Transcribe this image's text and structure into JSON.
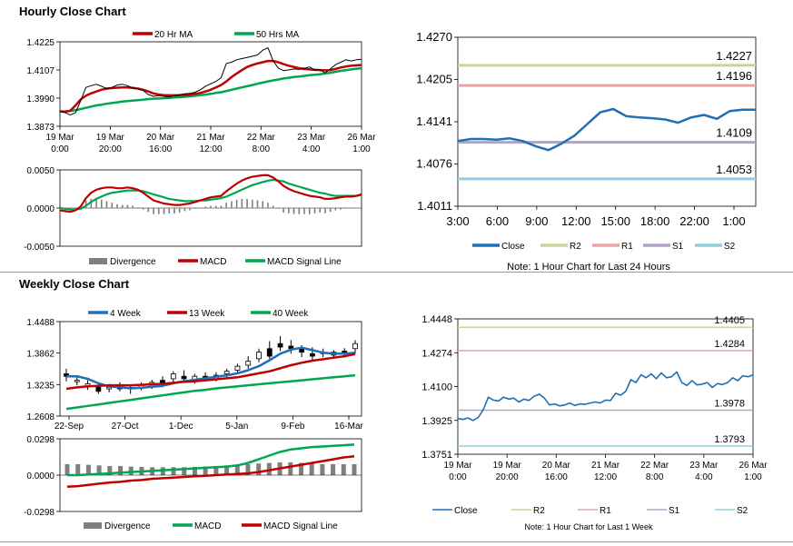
{
  "titles": {
    "hourly": "Hourly Close Chart",
    "weekly": "Weekly Close Chart"
  },
  "colors": {
    "red": "#c00000",
    "green": "#00a651",
    "blue": "#1f6fb5",
    "bar": "#7f7f7f",
    "r2": "#c3d69b",
    "r1": "#e6a6a6",
    "s1": "#b3a2c7",
    "s2": "#93cddd",
    "black": "#000000"
  },
  "chart_data": [
    {
      "id": "hourly_price",
      "type": "line",
      "legend": [
        "20 Hr MA",
        "50 Hrs MA"
      ],
      "x_tick_labels": [
        [
          "19 Mar",
          "0:00"
        ],
        [
          "19 Mar",
          "20:00"
        ],
        [
          "20 Mar",
          "16:00"
        ],
        [
          "21 Mar",
          "12:00"
        ],
        [
          "22 Mar",
          "8:00"
        ],
        [
          "23 Mar",
          "4:00"
        ],
        [
          "26 Mar",
          "1:00"
        ]
      ],
      "y_tick_labels": [
        "1.4225",
        "1.4107",
        "1.3990",
        "1.3873"
      ],
      "ylim": [
        1.3873,
        1.4225
      ],
      "series": [
        {
          "name": "Close",
          "values": [
            1.3935,
            1.393,
            1.392,
            1.393,
            1.398,
            1.4035,
            1.4042,
            1.4048,
            1.404,
            1.403,
            1.4035,
            1.4045,
            1.4048,
            1.4042,
            1.4032,
            1.4028,
            1.4022,
            1.4005,
            1.3998,
            1.4,
            1.3998,
            1.3995,
            1.4,
            1.4005,
            1.4008,
            1.401,
            1.4015,
            1.4025,
            1.404,
            1.405,
            1.406,
            1.4075,
            1.4135,
            1.414,
            1.415,
            1.4155,
            1.416,
            1.4165,
            1.417,
            1.419,
            1.42,
            1.4145,
            1.4115,
            1.4105,
            1.4108,
            1.4112,
            1.411,
            1.4115,
            1.412,
            1.4108,
            1.411,
            1.4095,
            1.4112,
            1.413,
            1.414,
            1.415,
            1.4145,
            1.415,
            1.4152
          ]
        },
        {
          "name": "20 Hr MA",
          "values": [
            1.3935,
            1.3933,
            1.3938,
            1.396,
            1.3985,
            1.4,
            1.401,
            1.4018,
            1.4025,
            1.403,
            1.4032,
            1.4034,
            1.4035,
            1.4035,
            1.4033,
            1.403,
            1.4025,
            1.4018,
            1.401,
            1.4005,
            1.4003,
            1.4002,
            1.4002,
            1.4002,
            1.4003,
            1.4005,
            1.4008,
            1.4012,
            1.4018,
            1.4025,
            1.4035,
            1.4045,
            1.406,
            1.4078,
            1.4093,
            1.4107,
            1.412,
            1.4128,
            1.4135,
            1.414,
            1.4145,
            1.4145,
            1.414,
            1.4132,
            1.4125,
            1.412,
            1.4115,
            1.4112,
            1.411,
            1.4108,
            1.4107,
            1.4106,
            1.4107,
            1.4112,
            1.4118,
            1.4122,
            1.4125,
            1.4127,
            1.4128
          ]
        },
        {
          "name": "50 Hrs MA",
          "values": [
            1.3935,
            1.3935,
            1.3937,
            1.394,
            1.3945,
            1.395,
            1.3955,
            1.396,
            1.3963,
            1.3967,
            1.397,
            1.3973,
            1.3976,
            1.3978,
            1.398,
            1.3982,
            1.3984,
            1.3986,
            1.3988,
            1.3989,
            1.399,
            1.3991,
            1.3993,
            1.3994,
            1.3996,
            1.3998,
            1.4,
            1.4003,
            1.4005,
            1.4008,
            1.4012,
            1.4015,
            1.402,
            1.4025,
            1.403,
            1.4035,
            1.404,
            1.4045,
            1.405,
            1.4055,
            1.406,
            1.4064,
            1.4068,
            1.4072,
            1.4075,
            1.4078,
            1.408,
            1.4083,
            1.4086,
            1.4088,
            1.409,
            1.4093,
            1.4096,
            1.41,
            1.4104,
            1.4107,
            1.411,
            1.4113,
            1.4115
          ]
        }
      ]
    },
    {
      "id": "hourly_macd",
      "type": "line",
      "legend": [
        "Divergence",
        "MACD",
        "MACD Signal Line"
      ],
      "y_tick_labels": [
        "0.0050",
        "0.0000",
        "-0.0050"
      ],
      "ylim": [
        -0.005,
        0.005
      ],
      "series": [
        {
          "name": "MACD",
          "values": [
            -0.0003,
            -0.0004,
            -0.0005,
            -0.0003,
            0.0002,
            0.0013,
            0.002,
            0.0024,
            0.0026,
            0.0027,
            0.0027,
            0.0026,
            0.0026,
            0.0027,
            0.0026,
            0.0024,
            0.002,
            0.0015,
            0.001,
            0.0008,
            0.0006,
            0.0005,
            0.0004,
            0.0004,
            0.0005,
            0.0006,
            0.0008,
            0.001,
            0.0012,
            0.0014,
            0.0015,
            0.0016,
            0.0022,
            0.0027,
            0.0032,
            0.0036,
            0.0039,
            0.0041,
            0.0042,
            0.0043,
            0.0043,
            0.004,
            0.0035,
            0.0029,
            0.0025,
            0.0022,
            0.002,
            0.0018,
            0.0016,
            0.0015,
            0.0014,
            0.0012,
            0.0012,
            0.0013,
            0.0014,
            0.0015,
            0.0015,
            0.0016,
            0.0018
          ]
        },
        {
          "name": "MACD Signal Line",
          "values": [
            0,
            -0.0001,
            -0.0002,
            -0.0002,
            -0.0001,
            0.0003,
            0.0008,
            0.0012,
            0.0015,
            0.0018,
            0.002,
            0.0021,
            0.0022,
            0.0023,
            0.0023,
            0.0023,
            0.0022,
            0.002,
            0.0018,
            0.0016,
            0.0014,
            0.0012,
            0.0011,
            0.001,
            0.0009,
            0.0009,
            0.0009,
            0.001,
            0.001,
            0.0011,
            0.0012,
            0.0013,
            0.0015,
            0.0018,
            0.0021,
            0.0024,
            0.0027,
            0.003,
            0.0032,
            0.0034,
            0.0036,
            0.0037,
            0.0036,
            0.0035,
            0.0032,
            0.003,
            0.0028,
            0.0026,
            0.0024,
            0.0022,
            0.002,
            0.0019,
            0.0017,
            0.0016,
            0.0016,
            0.0016,
            0.0016,
            0.0016,
            0.0017
          ]
        }
      ]
    },
    {
      "id": "hourly_24h",
      "type": "line",
      "x_tick_labels": [
        "3:00",
        "6:00",
        "9:00",
        "12:00",
        "15:00",
        "18:00",
        "22:00",
        "1:00"
      ],
      "y_tick_labels": [
        "1.4270",
        "1.4205",
        "1.4141",
        "1.4076",
        "1.4011"
      ],
      "ylim": [
        1.4011,
        1.427
      ],
      "legend": [
        "Close",
        "R2",
        "R1",
        "S1",
        "S2"
      ],
      "levels": [
        {
          "name": "R2",
          "value": 1.4227,
          "label": "1.4227"
        },
        {
          "name": "R1",
          "value": 1.4196,
          "label": "1.4196"
        },
        {
          "name": "S1",
          "value": 1.4109,
          "label": "1.4109"
        },
        {
          "name": "S2",
          "value": 1.4053,
          "label": "1.4053"
        }
      ],
      "series": [
        {
          "name": "Close",
          "values": [
            1.4111,
            1.4114,
            1.4114,
            1.4113,
            1.4115,
            1.4111,
            1.4103,
            1.4097,
            1.4107,
            1.4119,
            1.4137,
            1.4155,
            1.416,
            1.4149,
            1.4147,
            1.4146,
            1.4144,
            1.4139,
            1.4147,
            1.4151,
            1.4145,
            1.4157,
            1.4159,
            1.4159
          ]
        }
      ],
      "note": "Note: 1 Hour Chart for Last 24 Hours"
    },
    {
      "id": "weekly_price",
      "type": "candlestick",
      "legend": [
        "4 Week",
        "13 Week",
        "40 Week"
      ],
      "x_tick_labels": [
        "22-Sep",
        "27-Oct",
        "1-Dec",
        "5-Jan",
        "9-Feb",
        "16-Mar"
      ],
      "y_tick_labels": [
        "1.4488",
        "1.3862",
        "1.3235",
        "1.2608"
      ],
      "ylim": [
        1.2608,
        1.4488
      ],
      "candles": [
        {
          "o": 1.345,
          "h": 1.355,
          "l": 1.33,
          "c": 1.34
        },
        {
          "o": 1.33,
          "h": 1.342,
          "l": 1.322,
          "c": 1.332
        },
        {
          "o": 1.32,
          "h": 1.332,
          "l": 1.313,
          "c": 1.325
        },
        {
          "o": 1.318,
          "h": 1.325,
          "l": 1.305,
          "c": 1.31
        },
        {
          "o": 1.315,
          "h": 1.325,
          "l": 1.308,
          "c": 1.318
        },
        {
          "o": 1.318,
          "h": 1.328,
          "l": 1.31,
          "c": 1.315
        },
        {
          "o": 1.315,
          "h": 1.322,
          "l": 1.305,
          "c": 1.318
        },
        {
          "o": 1.318,
          "h": 1.328,
          "l": 1.312,
          "c": 1.322
        },
        {
          "o": 1.32,
          "h": 1.333,
          "l": 1.315,
          "c": 1.328
        },
        {
          "o": 1.332,
          "h": 1.34,
          "l": 1.318,
          "c": 1.325
        },
        {
          "o": 1.335,
          "h": 1.35,
          "l": 1.325,
          "c": 1.345
        },
        {
          "o": 1.34,
          "h": 1.352,
          "l": 1.33,
          "c": 1.335
        },
        {
          "o": 1.332,
          "h": 1.345,
          "l": 1.325,
          "c": 1.34
        },
        {
          "o": 1.34,
          "h": 1.348,
          "l": 1.332,
          "c": 1.336
        },
        {
          "o": 1.335,
          "h": 1.348,
          "l": 1.33,
          "c": 1.342
        },
        {
          "o": 1.345,
          "h": 1.355,
          "l": 1.338,
          "c": 1.35
        },
        {
          "o": 1.352,
          "h": 1.365,
          "l": 1.345,
          "c": 1.36
        },
        {
          "o": 1.362,
          "h": 1.38,
          "l": 1.355,
          "c": 1.37
        },
        {
          "o": 1.375,
          "h": 1.395,
          "l": 1.368,
          "c": 1.388
        },
        {
          "o": 1.395,
          "h": 1.41,
          "l": 1.375,
          "c": 1.38
        },
        {
          "o": 1.405,
          "h": 1.42,
          "l": 1.39,
          "c": 1.398
        },
        {
          "o": 1.4,
          "h": 1.412,
          "l": 1.385,
          "c": 1.395
        },
        {
          "o": 1.395,
          "h": 1.402,
          "l": 1.378,
          "c": 1.388
        },
        {
          "o": 1.385,
          "h": 1.398,
          "l": 1.37,
          "c": 1.38
        },
        {
          "o": 1.388,
          "h": 1.395,
          "l": 1.378,
          "c": 1.385
        },
        {
          "o": 1.382,
          "h": 1.392,
          "l": 1.375,
          "c": 1.388
        },
        {
          "o": 1.39,
          "h": 1.396,
          "l": 1.38,
          "c": 1.385
        },
        {
          "o": 1.395,
          "h": 1.412,
          "l": 1.385,
          "c": 1.405
        }
      ],
      "series": [
        {
          "name": "4 Week",
          "values": [
            1.34,
            1.34,
            1.335,
            1.326,
            1.32,
            1.318,
            1.316,
            1.317,
            1.319,
            1.321,
            1.326,
            1.33,
            1.333,
            1.336,
            1.339,
            1.342,
            1.346,
            1.352,
            1.36,
            1.372,
            1.385,
            1.393,
            1.397,
            1.392,
            1.387,
            1.385,
            1.385,
            1.387
          ]
        },
        {
          "name": "13 Week",
          "values": [
            1.315,
            1.318,
            1.32,
            1.321,
            1.322,
            1.322,
            1.322,
            1.323,
            1.324,
            1.325,
            1.327,
            1.329,
            1.33,
            1.332,
            1.334,
            1.336,
            1.338,
            1.342,
            1.346,
            1.35,
            1.356,
            1.362,
            1.367,
            1.371,
            1.374,
            1.377,
            1.38,
            1.384
          ]
        },
        {
          "name": "40 Week",
          "values": [
            1.275,
            1.278,
            1.281,
            1.284,
            1.287,
            1.29,
            1.293,
            1.296,
            1.299,
            1.302,
            1.305,
            1.308,
            1.311,
            1.313,
            1.316,
            1.318,
            1.32,
            1.322,
            1.324,
            1.326,
            1.328,
            1.33,
            1.332,
            1.334,
            1.336,
            1.338,
            1.34,
            1.342
          ]
        }
      ]
    },
    {
      "id": "weekly_macd",
      "type": "bar+line",
      "legend": [
        "Divergence",
        "MACD",
        "MACD Signal Line"
      ],
      "y_tick_labels": [
        "0.0298",
        "0.0000",
        "-0.0298"
      ],
      "ylim": [
        -0.0298,
        0.0298
      ],
      "divergence": [
        0.009,
        0.009,
        0.0085,
        0.008,
        0.0075,
        0.0075,
        0.007,
        0.0068,
        0.0065,
        0.0065,
        0.0065,
        0.0065,
        0.0068,
        0.007,
        0.0075,
        0.008,
        0.0085,
        0.009,
        0.0095,
        0.01,
        0.0105,
        0.0105,
        0.01,
        0.0095,
        0.009,
        0.009,
        0.009,
        0.009
      ],
      "series": [
        {
          "name": "MACD",
          "values": [
            0,
            0,
            0.0005,
            0.001,
            0.0015,
            0.002,
            0.0025,
            0.003,
            0.0035,
            0.004,
            0.0045,
            0.005,
            0.0055,
            0.006,
            0.0065,
            0.007,
            0.008,
            0.01,
            0.013,
            0.016,
            0.019,
            0.021,
            0.022,
            0.023,
            0.0235,
            0.024,
            0.0245,
            0.025
          ]
        },
        {
          "name": "MACD Signal Line",
          "values": [
            -0.0095,
            -0.009,
            -0.008,
            -0.007,
            -0.006,
            -0.0055,
            -0.0045,
            -0.004,
            -0.003,
            -0.0025,
            -0.002,
            -0.0015,
            -0.001,
            -0.0005,
            0,
            0.0005,
            0.001,
            0.0015,
            0.0025,
            0.004,
            0.0055,
            0.007,
            0.0085,
            0.01,
            0.0115,
            0.013,
            0.0145,
            0.0155
          ]
        }
      ]
    },
    {
      "id": "weekly_hourly",
      "type": "line",
      "x_tick_labels": [
        [
          "19 Mar",
          "0:00"
        ],
        [
          "19 Mar",
          "20:00"
        ],
        [
          "20 Mar",
          "16:00"
        ],
        [
          "21 Mar",
          "12:00"
        ],
        [
          "22 Mar",
          "8:00"
        ],
        [
          "23 Mar",
          "4:00"
        ],
        [
          "26 Mar",
          "1:00"
        ]
      ],
      "y_tick_labels": [
        "1.4448",
        "1.4274",
        "1.4100",
        "1.3925",
        "1.3751"
      ],
      "ylim": [
        1.3751,
        1.4448
      ],
      "legend": [
        "Close",
        "R2",
        "R1",
        "S1",
        "S2"
      ],
      "levels": [
        {
          "name": "R2",
          "value": 1.4405,
          "label": "1.4405"
        },
        {
          "name": "R1",
          "value": 1.4284,
          "label": "1.4284"
        },
        {
          "name": "S1",
          "value": 1.3978,
          "label": "1.3978"
        },
        {
          "name": "S2",
          "value": 1.3793,
          "label": "1.3793"
        }
      ],
      "series": [
        {
          "name": "Close",
          "values": [
            1.3935,
            1.393,
            1.3938,
            1.3925,
            1.394,
            1.398,
            1.4045,
            1.403,
            1.4025,
            1.4045,
            1.4035,
            1.404,
            1.402,
            1.4035,
            1.4028,
            1.405,
            1.406,
            1.404,
            1.4005,
            1.401,
            1.4,
            1.4005,
            1.4015,
            1.4002,
            1.401,
            1.4008,
            1.4015,
            1.402,
            1.4015,
            1.403,
            1.4028,
            1.4065,
            1.4055,
            1.4075,
            1.4135,
            1.412,
            1.416,
            1.4145,
            1.4165,
            1.414,
            1.417,
            1.4145,
            1.415,
            1.4175,
            1.412,
            1.4105,
            1.413,
            1.4108,
            1.4112,
            1.412,
            1.4095,
            1.4115,
            1.411,
            1.412,
            1.4145,
            1.413,
            1.4155,
            1.415,
            1.416
          ]
        }
      ],
      "note": "Note: 1 Hour Chart for Last 1 Week"
    }
  ]
}
